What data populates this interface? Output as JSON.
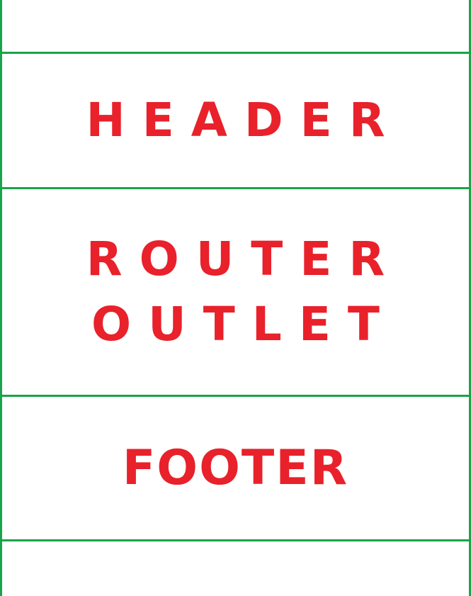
{
  "diagram": {
    "sections": {
      "header": {
        "label": "HEADER"
      },
      "router_outlet": {
        "line1": "ROUTER",
        "line2": "OUTLET"
      },
      "footer": {
        "label": "FOOTER"
      }
    },
    "colors": {
      "text": "#e8212b",
      "lines": "#1aa34a",
      "background": "#ffffff"
    }
  }
}
